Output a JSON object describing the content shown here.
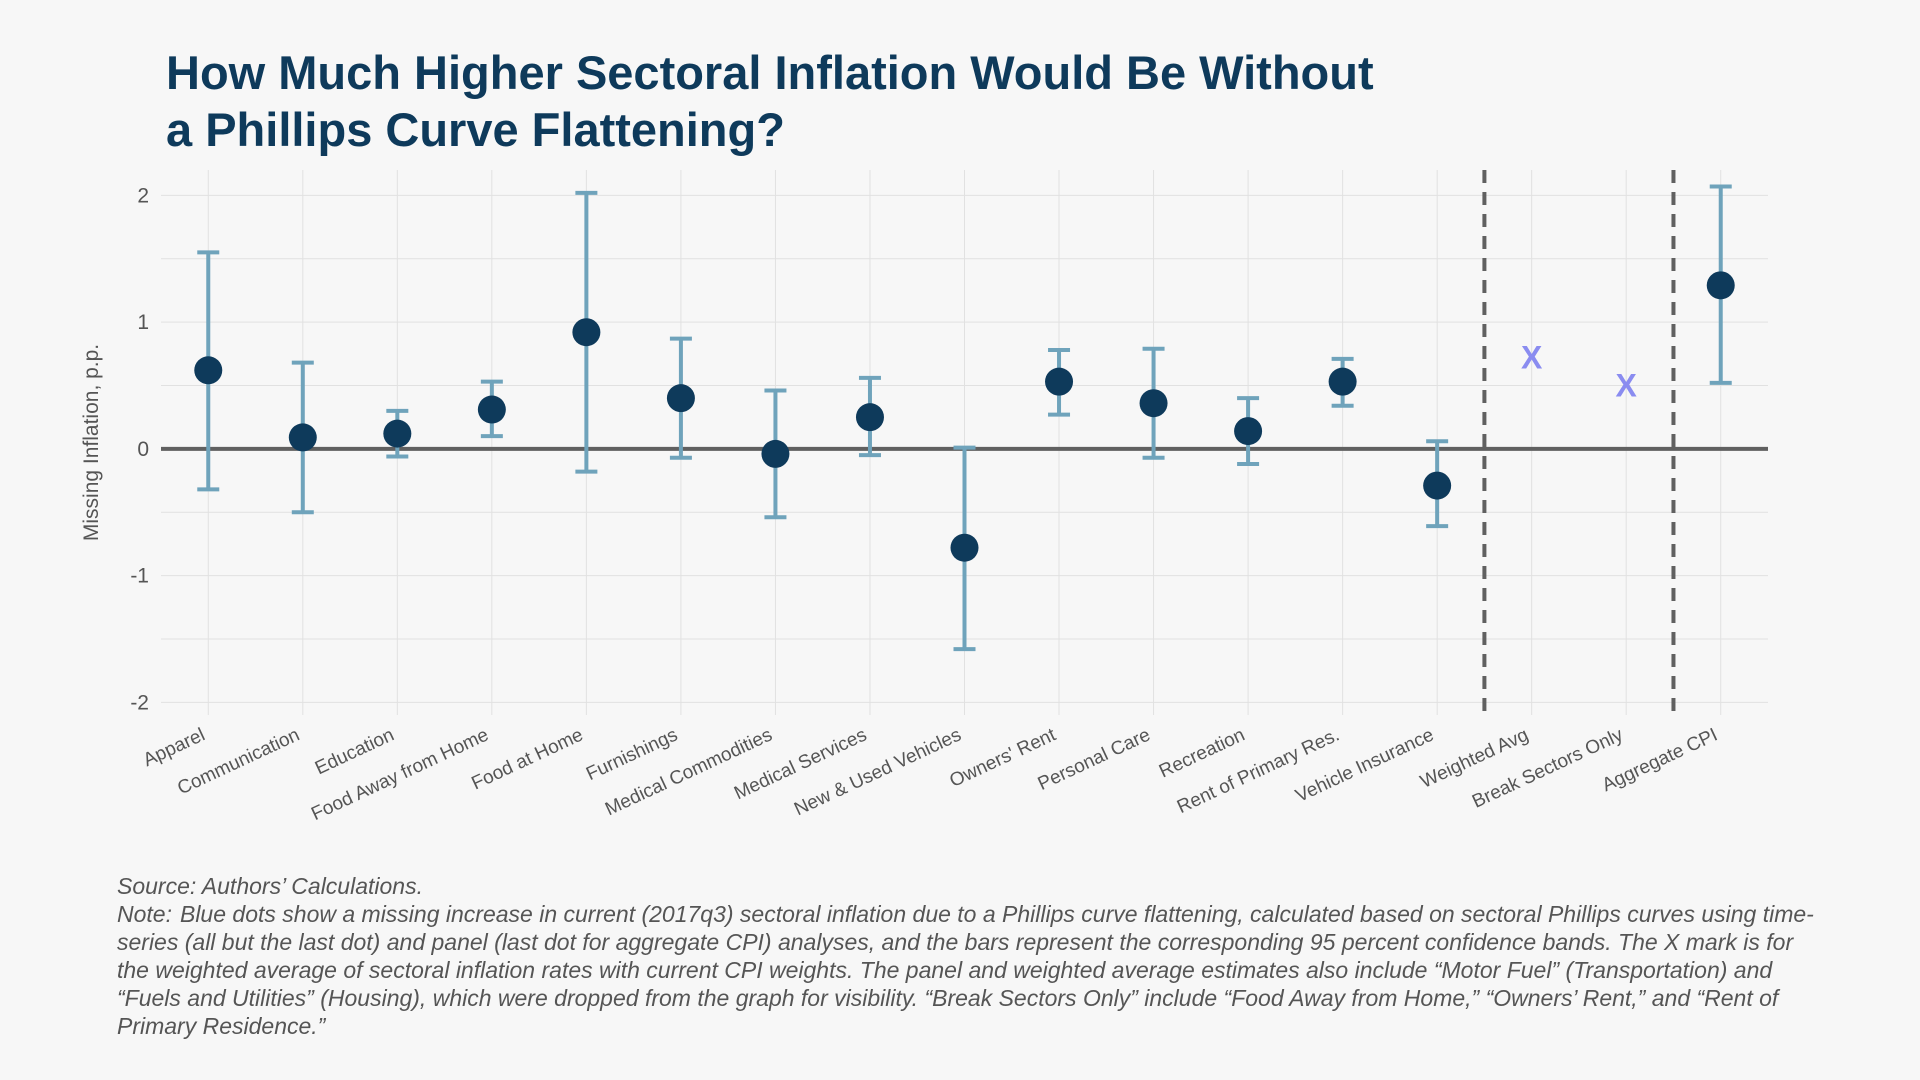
{
  "chart_data": {
    "type": "scatter",
    "title": [
      "How Much Higher Sectoral Inflation Would Be Without",
      "a Phillips Curve Flattening?"
    ],
    "ylabel": "Missing Inflation, p.p.",
    "xlabel": "",
    "ylim": [
      -2.1,
      2.2
    ],
    "yticks": [
      2,
      1,
      0,
      -1,
      -2
    ],
    "grid": true,
    "categories": [
      "Apparel",
      "Communication",
      "Education",
      "Food Away from Home",
      "Food at Home",
      "Furnishings",
      "Medical Commodities",
      "Medical Services",
      "New & Used Vehicles",
      "Owners' Rent",
      "Personal Care",
      "Recreation",
      "Rent of Primary Res.",
      "Vehicle Insurance",
      "Weighted Avg",
      "Break Sectors Only",
      "Aggregate CPI"
    ],
    "series": [
      {
        "marker": "dot",
        "color": "#0e3a5b",
        "points": [
          {
            "category": "Apparel",
            "y": 0.62,
            "lower": -0.32,
            "upper": 1.55
          },
          {
            "category": "Communication",
            "y": 0.09,
            "lower": -0.5,
            "upper": 0.68
          },
          {
            "category": "Education",
            "y": 0.12,
            "lower": -0.06,
            "upper": 0.3
          },
          {
            "category": "Food Away from Home",
            "y": 0.31,
            "lower": 0.1,
            "upper": 0.53
          },
          {
            "category": "Food at Home",
            "y": 0.92,
            "lower": -0.18,
            "upper": 2.02
          },
          {
            "category": "Furnishings",
            "y": 0.4,
            "lower": -0.07,
            "upper": 0.87
          },
          {
            "category": "Medical Commodities",
            "y": -0.04,
            "lower": -0.54,
            "upper": 0.46
          },
          {
            "category": "Medical Services",
            "y": 0.25,
            "lower": -0.05,
            "upper": 0.56
          },
          {
            "category": "New & Used Vehicles",
            "y": -0.78,
            "lower": -1.58,
            "upper": 0.01
          },
          {
            "category": "Owners' Rent",
            "y": 0.53,
            "lower": 0.27,
            "upper": 0.78
          },
          {
            "category": "Personal Care",
            "y": 0.36,
            "lower": -0.07,
            "upper": 0.79
          },
          {
            "category": "Recreation",
            "y": 0.14,
            "lower": -0.12,
            "upper": 0.4
          },
          {
            "category": "Rent of Primary Res.",
            "y": 0.53,
            "lower": 0.34,
            "upper": 0.71
          },
          {
            "category": "Vehicle Insurance",
            "y": -0.29,
            "lower": -0.61,
            "upper": 0.06
          },
          {
            "category": "Aggregate CPI",
            "y": 1.29,
            "lower": 0.52,
            "upper": 2.07
          }
        ]
      },
      {
        "marker": "x",
        "color": "#8a8cf0",
        "points": [
          {
            "category": "Weighted Avg",
            "y": 0.72
          },
          {
            "category": "Break Sectors Only",
            "y": 0.5
          }
        ]
      }
    ],
    "dividers_after": [
      "Vehicle Insurance",
      "Break Sectors Only"
    ],
    "marker_x_text": "X",
    "colors": {
      "dot": "#0e3a5b",
      "errorbar": "#6fa3bb",
      "x_marker": "#8a8cf0",
      "zero_line": "#606060",
      "divider": "#606060",
      "grid": "#e1e1e1"
    }
  },
  "footer": {
    "source": "Source: Authors’ Calculations.",
    "note_label": "Note:",
    "note": "Blue dots show a missing increase in current (2017q3) sectoral inflation due to a Phillips curve flattening, calculated based on sectoral Phillips curves using time-series (all but the last dot) and panel (last dot for aggregate CPI) analyses, and the bars represent the corresponding 95 percent confidence bands. The X mark is for the weighted average of sectoral inflation rates with current CPI weights. The panel and weighted average estimates also include “Motor Fuel” (Transportation) and “Fuels and Utilities” (Housing), which were dropped from the graph for visibility. “Break Sectors Only” include “Food Away from Home,” “Owners’ Rent,” and “Rent of Primary Residence.”"
  }
}
